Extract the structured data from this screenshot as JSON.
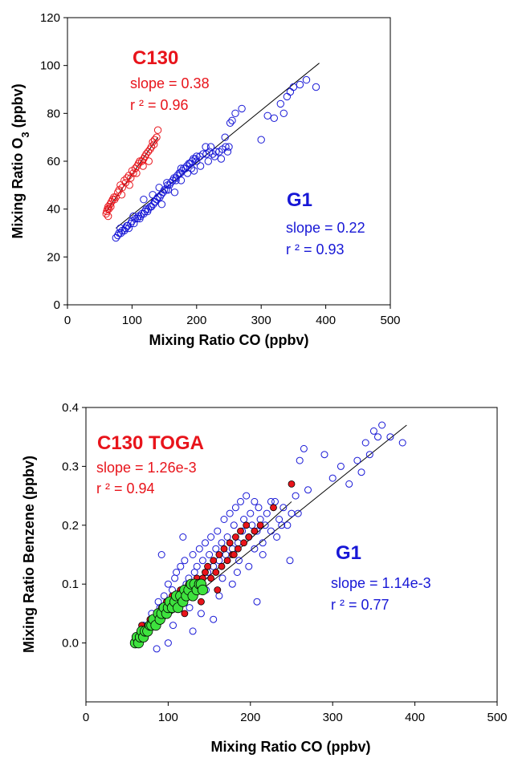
{
  "colors": {
    "c130": "#e8141b",
    "g1": "#1717d6",
    "toga_green": "#3ee23e",
    "fit_line": "#000000"
  },
  "chart_data": [
    {
      "type": "scatter",
      "xlabel": "Mixing Ratio CO (ppbv)",
      "ylabel_main": "Mixing Ratio O",
      "ylabel_sub": "3",
      "ylabel_tail": " (ppbv)",
      "xlim": [
        0,
        500
      ],
      "ylim": [
        0,
        120
      ],
      "xticks": [
        "0",
        "100",
        "200",
        "300",
        "400",
        "500"
      ],
      "yticks": [
        "0",
        "20",
        "40",
        "60",
        "80",
        "100",
        "120"
      ],
      "grid": false,
      "annotations": [
        {
          "title": "C130",
          "slope": "slope = 0.38",
          "r2": "r ² = 0.96"
        },
        {
          "title": "G1",
          "slope": "slope = 0.22",
          "r2": "r ² = 0.93"
        }
      ],
      "fits": [
        {
          "name": "C130",
          "x": [
            60,
            140
          ],
          "y": [
            39,
            70
          ]
        },
        {
          "name": "G1",
          "x": [
            75,
            390
          ],
          "y": [
            32,
            101
          ]
        }
      ],
      "series": [
        {
          "name": "C130",
          "marker": "open-circle",
          "x": [
            60,
            61,
            62,
            63,
            64,
            66,
            68,
            70,
            72,
            75,
            78,
            80,
            82,
            85,
            88,
            90,
            92,
            95,
            98,
            100,
            102,
            105,
            108,
            110,
            112,
            115,
            118,
            120,
            122,
            125,
            128,
            130,
            132,
            135,
            138,
            140,
            63,
            67,
            73,
            84,
            96,
            107,
            117,
            126,
            134
          ],
          "y": [
            38,
            39,
            40,
            41,
            40,
            42,
            43,
            44,
            45,
            45,
            47,
            48,
            50,
            49,
            52,
            51,
            53,
            54,
            53,
            56,
            55,
            57,
            58,
            59,
            60,
            60,
            61,
            62,
            63,
            64,
            65,
            66,
            68,
            69,
            70,
            73,
            37,
            41,
            44,
            46,
            50,
            55,
            58,
            60,
            67
          ]
        },
        {
          "name": "G1",
          "marker": "open-circle",
          "x": [
            75,
            78,
            80,
            83,
            85,
            88,
            90,
            93,
            95,
            98,
            100,
            103,
            105,
            108,
            110,
            113,
            115,
            118,
            120,
            122,
            125,
            128,
            130,
            133,
            135,
            138,
            140,
            143,
            145,
            148,
            150,
            153,
            155,
            158,
            160,
            163,
            165,
            168,
            170,
            173,
            175,
            178,
            180,
            183,
            185,
            188,
            190,
            193,
            195,
            198,
            200,
            205,
            210,
            215,
            220,
            225,
            230,
            235,
            240,
            245,
            250,
            252,
            255,
            260,
            270,
            300,
            310,
            320,
            330,
            335,
            340,
            345,
            350,
            360,
            370,
            385,
            82,
            92,
            102,
            112,
            124,
            136,
            146,
            156,
            166,
            176,
            186,
            196,
            206,
            218,
            228,
            238,
            118,
            142,
            168,
            192,
            214,
            244,
            132,
            154,
            176,
            200,
            222,
            248
          ],
          "y": [
            28,
            29,
            30,
            30,
            31,
            31,
            32,
            33,
            32,
            34,
            35,
            34,
            36,
            36,
            37,
            37,
            38,
            38,
            39,
            40,
            40,
            41,
            41,
            42,
            43,
            44,
            45,
            45,
            46,
            47,
            48,
            48,
            50,
            50,
            51,
            52,
            53,
            53,
            54,
            55,
            55,
            56,
            57,
            57,
            58,
            59,
            59,
            60,
            61,
            61,
            62,
            62,
            63,
            63,
            64,
            63,
            64,
            64,
            65,
            66,
            66,
            76,
            77,
            80,
            82,
            69,
            79,
            78,
            84,
            80,
            87,
            89,
            91,
            92,
            94,
            91,
            32,
            33,
            37,
            36,
            39,
            43,
            42,
            48,
            47,
            52,
            55,
            56,
            58,
            60,
            62,
            61,
            44,
            49,
            52,
            57,
            66,
            70,
            46,
            51,
            57,
            60,
            66,
            64
          ]
        }
      ]
    },
    {
      "type": "scatter",
      "xlabel": "Mixing Ratio CO (ppbv)",
      "ylabel_main": "Mixing Ratio Benzene (ppbv)",
      "xlim": [
        0,
        500
      ],
      "ylim": [
        -0.1,
        0.4
      ],
      "xticks": [
        "0",
        "100",
        "200",
        "300",
        "400",
        "500"
      ],
      "yticks": [
        "0.0",
        "0.1",
        "0.2",
        "0.3",
        "0.4"
      ],
      "grid": false,
      "annotations": [
        {
          "title": "C130 TOGA",
          "slope": "slope = 1.26e-3",
          "r2": "r ² = 0.94"
        },
        {
          "title": "G1",
          "slope": "slope = 1.14e-3",
          "r2": "r ² = 0.77"
        }
      ],
      "fits": [
        {
          "name": "C130 TOGA",
          "x": [
            60,
            250
          ],
          "y": [
            0.0,
            0.24
          ]
        },
        {
          "name": "G1",
          "x": [
            60,
            390
          ],
          "y": [
            0.0,
            0.37
          ]
        }
      ],
      "series": [
        {
          "name": "G1",
          "marker": "open-circle",
          "x": [
            65,
            70,
            75,
            80,
            85,
            88,
            90,
            95,
            98,
            100,
            105,
            108,
            110,
            112,
            115,
            118,
            120,
            122,
            125,
            128,
            130,
            132,
            135,
            138,
            140,
            142,
            145,
            148,
            150,
            152,
            155,
            158,
            160,
            162,
            165,
            168,
            170,
            172,
            175,
            178,
            180,
            182,
            185,
            188,
            190,
            192,
            195,
            198,
            200,
            202,
            205,
            208,
            210,
            212,
            215,
            218,
            220,
            225,
            230,
            235,
            240,
            245,
            250,
            255,
            260,
            265,
            270,
            290,
            300,
            310,
            320,
            330,
            335,
            340,
            345,
            350,
            355,
            360,
            370,
            385,
            92,
            118,
            140,
            162,
            184,
            205,
            225,
            248,
            100,
            130,
            155,
            178,
            198,
            215,
            238,
            258,
            86,
            106,
            126,
            146,
            166,
            186,
            208,
            232
          ],
          "y": [
            0.01,
            0.03,
            0.02,
            0.05,
            0.04,
            0.07,
            0.06,
            0.08,
            0.05,
            0.1,
            0.09,
            0.11,
            0.12,
            0.07,
            0.13,
            0.08,
            0.14,
            0.1,
            0.11,
            0.09,
            0.15,
            0.12,
            0.13,
            0.16,
            0.1,
            0.14,
            0.17,
            0.12,
            0.15,
            0.18,
            0.13,
            0.16,
            0.19,
            0.14,
            0.17,
            0.21,
            0.15,
            0.18,
            0.22,
            0.16,
            0.2,
            0.23,
            0.17,
            0.24,
            0.19,
            0.21,
            0.25,
            0.18,
            0.22,
            0.2,
            0.24,
            0.19,
            0.23,
            0.21,
            0.17,
            0.2,
            0.22,
            0.19,
            0.24,
            0.21,
            0.23,
            0.2,
            0.22,
            0.25,
            0.31,
            0.33,
            0.26,
            0.32,
            0.28,
            0.3,
            0.27,
            0.31,
            0.29,
            0.34,
            0.32,
            0.36,
            0.35,
            0.37,
            0.35,
            0.34,
            0.15,
            0.18,
            0.05,
            0.08,
            0.12,
            0.16,
            0.24,
            0.14,
            0.0,
            0.02,
            0.04,
            0.1,
            0.13,
            0.15,
            0.2,
            0.22,
            -0.01,
            0.03,
            0.06,
            0.09,
            0.11,
            0.14,
            0.07,
            0.18
          ]
        },
        {
          "name": "C130 TOGA",
          "marker": "filled-circle",
          "x": [
            62,
            65,
            68,
            72,
            75,
            78,
            82,
            85,
            88,
            92,
            95,
            98,
            102,
            105,
            108,
            112,
            115,
            118,
            122,
            125,
            128,
            132,
            135,
            138,
            142,
            145,
            148,
            152,
            155,
            158,
            162,
            165,
            168,
            172,
            175,
            178,
            182,
            185,
            188,
            192,
            195,
            198,
            205,
            212,
            228,
            250,
            120,
            140,
            160,
            180
          ],
          "y": [
            0.0,
            0.01,
            0.03,
            0.02,
            0.03,
            0.04,
            0.03,
            0.04,
            0.05,
            0.06,
            0.05,
            0.07,
            0.06,
            0.08,
            0.07,
            0.08,
            0.09,
            0.07,
            0.09,
            0.1,
            0.08,
            0.1,
            0.11,
            0.09,
            0.11,
            0.12,
            0.13,
            0.11,
            0.14,
            0.12,
            0.15,
            0.13,
            0.16,
            0.14,
            0.17,
            0.15,
            0.18,
            0.16,
            0.19,
            0.17,
            0.2,
            0.18,
            0.19,
            0.2,
            0.23,
            0.27,
            0.05,
            0.07,
            0.09,
            0.15
          ]
        },
        {
          "name": "C130 TOGA (green)",
          "marker": "filled-circle",
          "x": [
            60,
            62,
            64,
            66,
            68,
            70,
            72,
            75,
            78,
            80,
            82,
            85,
            88,
            90,
            92,
            95,
            98,
            100,
            102,
            105,
            108,
            110,
            112,
            115,
            118,
            120,
            122,
            125,
            128,
            130,
            132,
            135,
            138,
            140,
            142
          ],
          "y": [
            0.0,
            0.01,
            0.0,
            0.01,
            0.02,
            0.01,
            0.02,
            0.02,
            0.03,
            0.03,
            0.04,
            0.03,
            0.05,
            0.04,
            0.05,
            0.06,
            0.05,
            0.06,
            0.07,
            0.06,
            0.07,
            0.08,
            0.06,
            0.08,
            0.07,
            0.09,
            0.08,
            0.09,
            0.1,
            0.08,
            0.1,
            0.09,
            0.1,
            0.1,
            0.09
          ]
        }
      ]
    }
  ]
}
